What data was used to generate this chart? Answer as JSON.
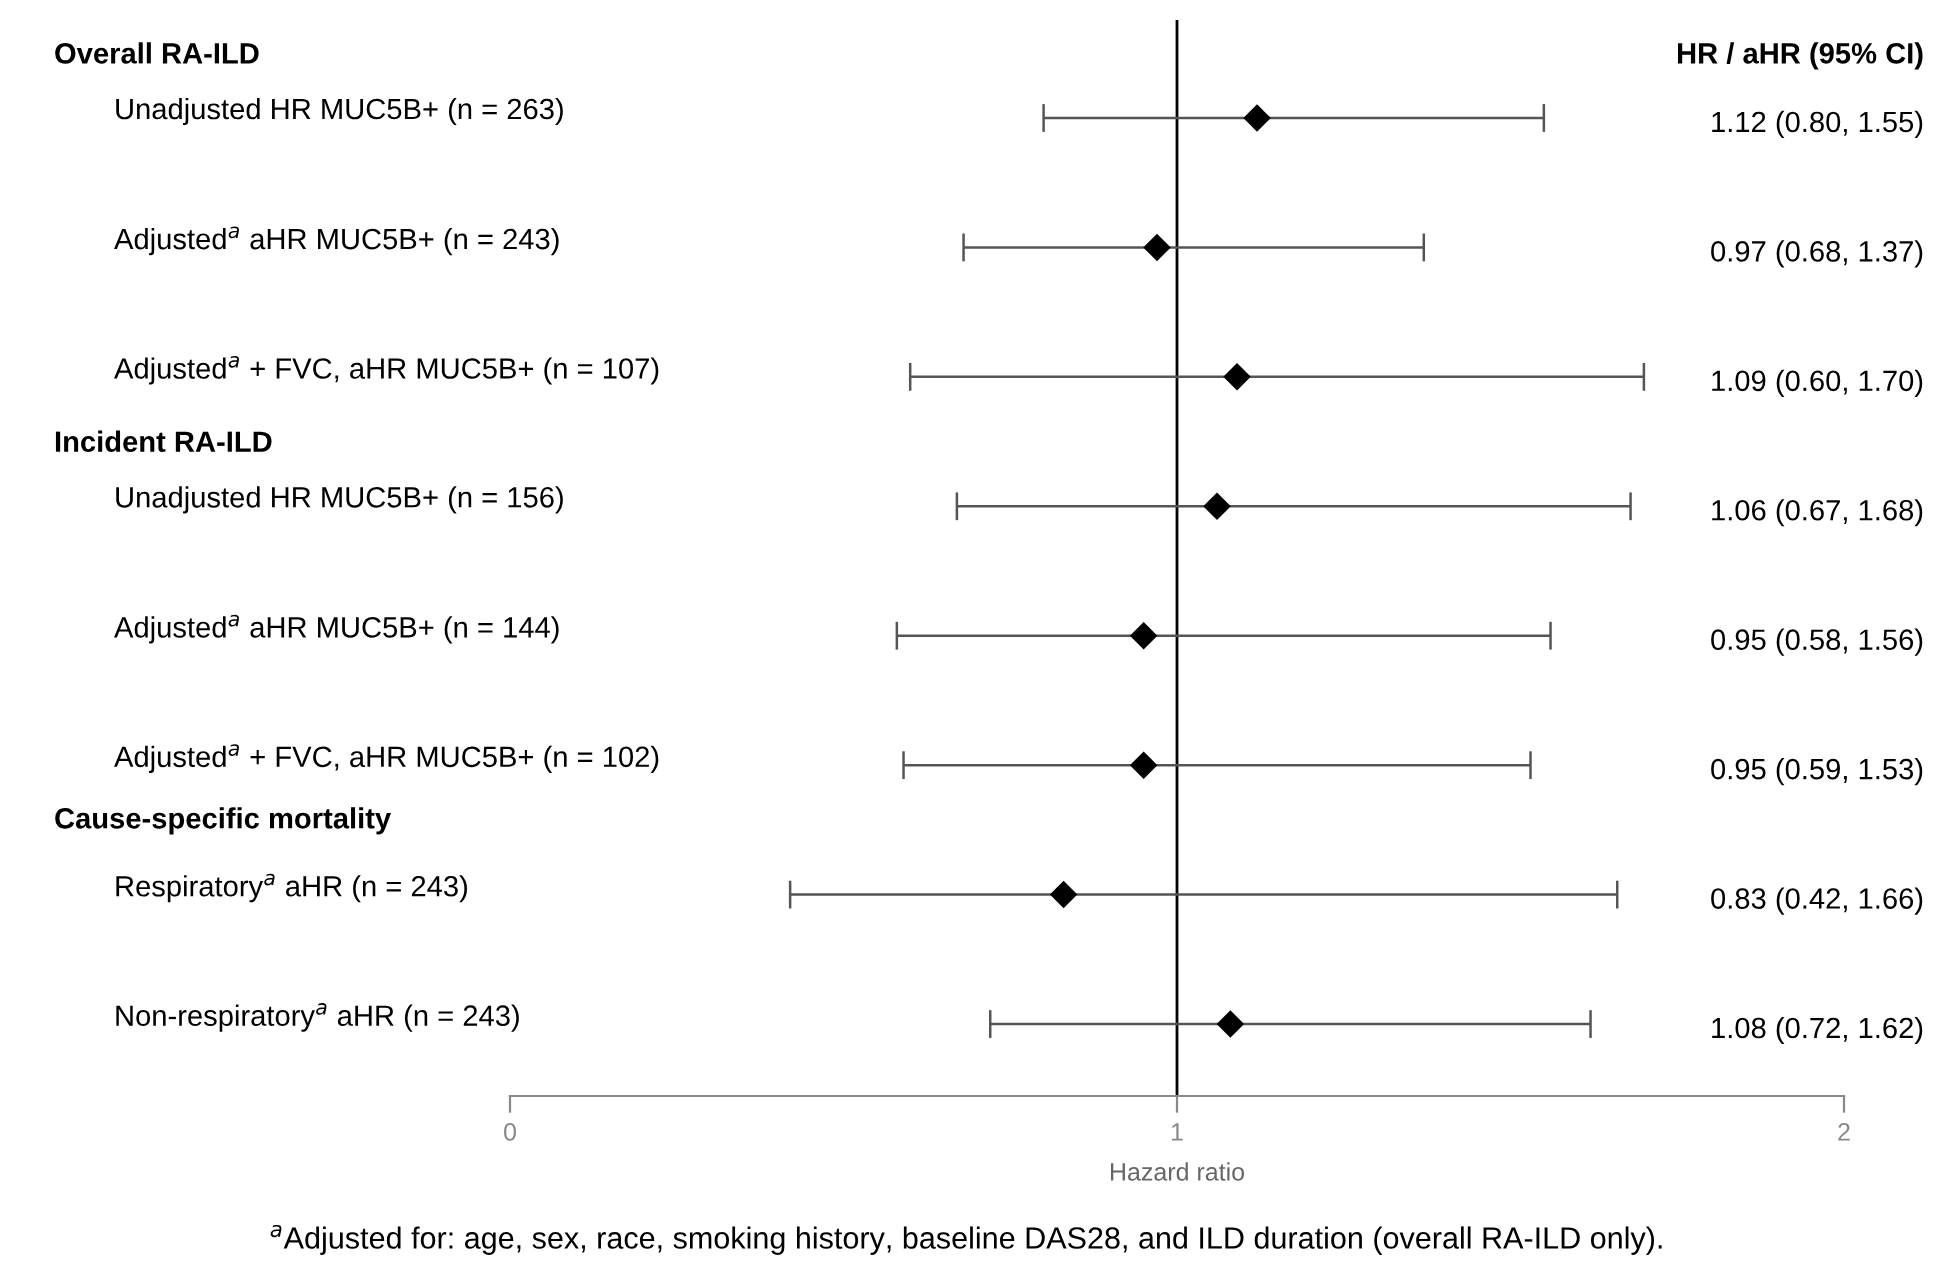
{
  "chart_data": {
    "type": "scatter",
    "orientation": "horizontal",
    "xlabel": "Hazard ratio",
    "categories": [
      "Unadjusted HR MUC5B+ (n = 263)",
      "Adjusted$^{a}$ aHR MUC5B+ (n = 243)",
      "Adjusted$^{a}$ + FVC, aHR MUC5B+ (n = 107)",
      "Unadjusted HR MUC5B+ (n = 156)",
      "Adjusted$^{a}$ aHR MUC5B+ (n = 144)",
      "Adjusted$^{a}$ + FVC, aHR MUC5B+ (n = 102)",
      "Respiratory$^{a}$ aHR (n = 243)",
      "Non-respiratory$^{a}$ aHR (n = 243)"
    ],
    "values": [
      1.12,
      0.97,
      1.09,
      1.06,
      0.95,
      0.95,
      0.83,
      1.08
    ],
    "errors": [
      [
        0.8,
        1.55
      ],
      [
        0.68,
        1.37
      ],
      [
        0.6,
        1.7
      ],
      [
        0.67,
        1.68
      ],
      [
        0.58,
        1.56
      ],
      [
        0.59,
        1.53
      ],
      [
        0.42,
        1.66
      ],
      [
        0.72,
        1.62
      ]
    ],
    "color": "#000000",
    "marker": "diamond",
    "xlim": [
      0,
      2
    ],
    "xticks": [
      0,
      1,
      2
    ],
    "tick_labels": "x",
    "grid": false,
    "legend": false,
    "ref_lines": [
      {
        "axis": "x",
        "value": 1,
        "color": "#000000"
      }
    ],
    "annotations": [
      "Overall RA-ILD",
      "Incident RA-ILD",
      "Cause-specific mortality",
      "HR / aHR (95% CI)",
      "$^{a}$Adjusted for: age, sex, race, smoking history, baseline DAS28, and ILD duration (overall RA-ILD only).",
      "1.12 (0.80, 1.55)",
      "0.97 (0.68, 1.37)",
      "1.09 (0.60, 1.70)",
      "1.06 (0.67, 1.68)",
      "0.95 (0.58, 1.56)",
      "0.95 (0.59, 1.53)",
      "0.83 (0.42, 1.66)",
      "1.08 (0.72, 1.62)"
    ]
  }
}
